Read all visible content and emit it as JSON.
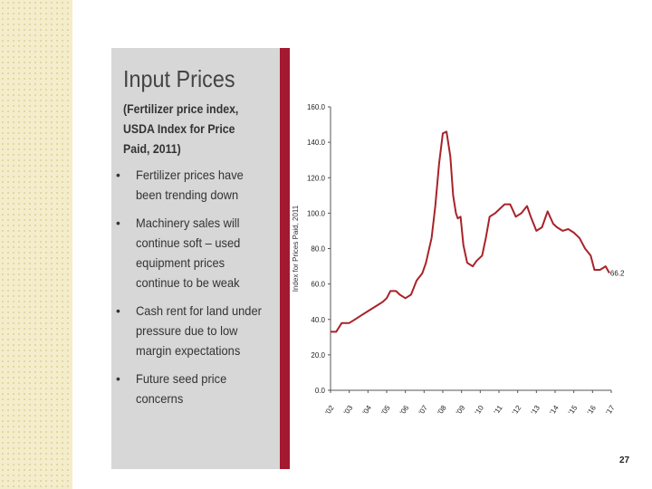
{
  "slide": {
    "title": "Input Prices",
    "subtitle": "(Fertilizer price index, USDA Index for Price Paid, 2011)",
    "bullets": [
      "Fertilizer prices have been trending down",
      "Machinery sales will continue soft – used equipment prices continue to be weak",
      "Cash rent for land under pressure due to low margin expectations",
      "Future seed price concerns"
    ],
    "bullet_symbol": "•",
    "page_number": "27"
  },
  "colors": {
    "accent_bar": "#a3192f",
    "series_line": "#a8232a",
    "panel_bg": "#d7d7d7",
    "dot_strip": "#f4edcc"
  },
  "chart_data": {
    "type": "line",
    "title": "",
    "xlabel": "",
    "ylabel": "Index for Prices Paid, 2011",
    "ylim": [
      0,
      160
    ],
    "xlim": [
      2002,
      2017
    ],
    "yticks": [
      0,
      20,
      40,
      60,
      80,
      100,
      120,
      140,
      160
    ],
    "ytick_labels": [
      "0.0",
      "20.0",
      "40.0",
      "60.0",
      "80.0",
      "100.0",
      "120.0",
      "140.0",
      "160.0"
    ],
    "xticks": [
      2002,
      2003,
      2004,
      2005,
      2006,
      2007,
      2008,
      2009,
      2010,
      2011,
      2012,
      2013,
      2014,
      2015,
      2016,
      2017
    ],
    "xtick_labels": [
      "'02",
      "'03",
      "'04",
      "'05",
      "'06",
      "'07",
      "'08",
      "'09",
      "'10",
      "'11",
      "'12",
      "'13",
      "'14",
      "'15",
      "'16",
      "'17"
    ],
    "grid": false,
    "legend": "none",
    "annotations": [
      {
        "text": "66.2",
        "x": 2016.9,
        "y": 66.2
      }
    ],
    "series": [
      {
        "x": [
          2002.0,
          2002.3,
          2002.6,
          2002.8,
          2003.0,
          2003.3,
          2003.6,
          2003.9,
          2004.2,
          2004.5,
          2004.8,
          2005.0,
          2005.2,
          2005.5,
          2005.7,
          2006.0,
          2006.3,
          2006.6,
          2006.9,
          2007.1,
          2007.4,
          2007.6,
          2007.8,
          2008.0,
          2008.2,
          2008.4,
          2008.55,
          2008.7,
          2008.8,
          2008.95,
          2009.1,
          2009.3,
          2009.6,
          2009.8,
          2010.1,
          2010.3,
          2010.5,
          2010.8,
          2011.0,
          2011.3,
          2011.6,
          2011.9,
          2012.2,
          2012.5,
          2012.7,
          2013.0,
          2013.3,
          2013.6,
          2013.9,
          2014.1,
          2014.4,
          2014.7,
          2015.0,
          2015.3,
          2015.6,
          2015.9,
          2016.1,
          2016.4,
          2016.7,
          2016.9
        ],
        "y": [
          33,
          33,
          38,
          38,
          38,
          40,
          42,
          44,
          46,
          48,
          50,
          52,
          56,
          56,
          54,
          52,
          54,
          62,
          66,
          72,
          86,
          104,
          128,
          145,
          146,
          132,
          110,
          100,
          97,
          98,
          82,
          72,
          70,
          73,
          76,
          86,
          98,
          100,
          102,
          105,
          105,
          98,
          100,
          104,
          98,
          90,
          92,
          101,
          94,
          92,
          90,
          91,
          89,
          86,
          80,
          76,
          68,
          68,
          70,
          66.2
        ]
      }
    ]
  }
}
